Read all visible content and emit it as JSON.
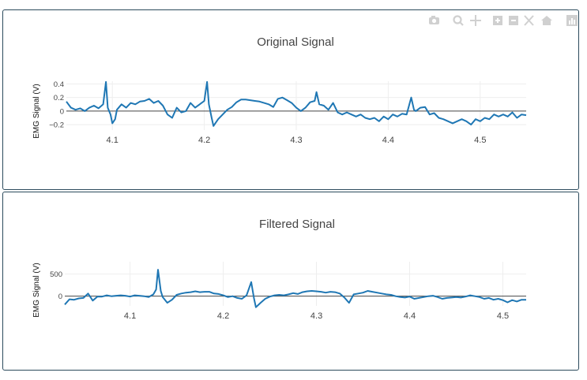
{
  "toolbar": {
    "icons": [
      "camera-icon",
      "zoom-icon",
      "pan-icon",
      "zoom-in-icon",
      "zoom-out-icon",
      "autoscale-icon",
      "home-icon",
      "plotly-logo-icon"
    ]
  },
  "colors": {
    "line": "#1f77b4",
    "zeroline": "#444444",
    "grid": "#eeeeee",
    "border": "#2b4a5c"
  },
  "chart_data": [
    {
      "type": "line",
      "title": "Original Signal",
      "ylabel": "EMG Signal (V)",
      "xlabel": "",
      "xlim": [
        4.05,
        4.55
      ],
      "ylim": [
        -0.28,
        0.44
      ],
      "xticks": [
        "4.1",
        "4.2",
        "4.3",
        "4.4",
        "4.5"
      ],
      "xtick_values": [
        4.1,
        4.2,
        4.3,
        4.4,
        4.5
      ],
      "yticks": [
        "0.4",
        "0.2",
        "0",
        "−0.2"
      ],
      "ytick_values": [
        0.4,
        0.2,
        0,
        -0.2
      ],
      "grid": true,
      "x": [
        4.05,
        4.055,
        4.06,
        4.065,
        4.07,
        4.075,
        4.08,
        4.085,
        4.09,
        4.093,
        4.095,
        4.098,
        4.1,
        4.103,
        4.105,
        4.11,
        4.115,
        4.12,
        4.125,
        4.13,
        4.135,
        4.14,
        4.145,
        4.15,
        4.155,
        4.16,
        4.165,
        4.17,
        4.175,
        4.18,
        4.185,
        4.19,
        4.195,
        4.2,
        4.203,
        4.205,
        4.208,
        4.21,
        4.215,
        4.22,
        4.225,
        4.23,
        4.235,
        4.24,
        4.245,
        4.25,
        4.255,
        4.26,
        4.265,
        4.27,
        4.275,
        4.28,
        4.285,
        4.29,
        4.295,
        4.3,
        4.305,
        4.31,
        4.315,
        4.32,
        4.322,
        4.325,
        4.33,
        4.335,
        4.34,
        4.345,
        4.35,
        4.355,
        4.36,
        4.365,
        4.37,
        4.375,
        4.38,
        4.385,
        4.39,
        4.395,
        4.4,
        4.405,
        4.41,
        4.415,
        4.42,
        4.425,
        4.428,
        4.43,
        4.435,
        4.44,
        4.445,
        4.45,
        4.455,
        4.46,
        4.465,
        4.47,
        4.475,
        4.48,
        4.485,
        4.49,
        4.495,
        4.5,
        4.505,
        4.51,
        4.515,
        4.52,
        4.525,
        4.53,
        4.535,
        4.54,
        4.545,
        4.55
      ],
      "y": [
        0.14,
        0.05,
        0.02,
        0.04,
        0.0,
        0.05,
        0.08,
        0.04,
        0.1,
        0.43,
        0.05,
        -0.05,
        -0.18,
        -0.12,
        0.02,
        0.1,
        0.05,
        0.12,
        0.1,
        0.14,
        0.15,
        0.18,
        0.12,
        0.15,
        0.08,
        -0.05,
        -0.1,
        0.05,
        -0.02,
        0.0,
        0.12,
        0.05,
        0.1,
        0.15,
        0.43,
        0.1,
        -0.1,
        -0.22,
        -0.12,
        -0.05,
        0.02,
        0.06,
        0.13,
        0.17,
        0.17,
        0.16,
        0.15,
        0.14,
        0.12,
        0.1,
        0.06,
        0.18,
        0.2,
        0.16,
        0.12,
        0.05,
        0.0,
        0.05,
        0.13,
        0.15,
        0.28,
        0.1,
        0.08,
        0.02,
        0.12,
        -0.02,
        -0.05,
        -0.02,
        -0.05,
        -0.08,
        -0.05,
        -0.1,
        -0.12,
        -0.1,
        -0.15,
        -0.08,
        -0.12,
        -0.05,
        -0.08,
        -0.04,
        -0.05,
        0.2,
        0.02,
        0.0,
        0.05,
        0.06,
        -0.05,
        -0.03,
        -0.1,
        -0.12,
        -0.15,
        -0.18,
        -0.15,
        -0.12,
        -0.15,
        -0.2,
        -0.12,
        -0.15,
        -0.1,
        -0.12,
        -0.05,
        -0.08,
        -0.05,
        -0.08,
        -0.02,
        -0.1,
        -0.05,
        -0.06
      ]
    },
    {
      "type": "line",
      "title": "Filtered Signal",
      "ylabel": "EMG Signal (V)",
      "xlabel": "",
      "xlim": [
        4.03,
        4.525
      ],
      "ylim": [
        -220,
        780
      ],
      "xticks": [
        "4.1",
        "4.2",
        "4.3",
        "4.4",
        "4.5"
      ],
      "xtick_values": [
        4.1,
        4.2,
        4.3,
        4.4,
        4.5
      ],
      "yticks": [
        "500",
        "0"
      ],
      "ytick_values": [
        500,
        0
      ],
      "grid": true,
      "x": [
        4.03,
        4.035,
        4.04,
        4.045,
        4.05,
        4.055,
        4.06,
        4.065,
        4.07,
        4.075,
        4.08,
        4.085,
        4.09,
        4.095,
        4.1,
        4.105,
        4.11,
        4.115,
        4.12,
        4.125,
        4.128,
        4.13,
        4.133,
        4.135,
        4.14,
        4.145,
        4.15,
        4.155,
        4.16,
        4.165,
        4.17,
        4.175,
        4.18,
        4.185,
        4.19,
        4.195,
        4.2,
        4.205,
        4.21,
        4.215,
        4.22,
        4.225,
        4.23,
        4.233,
        4.235,
        4.24,
        4.245,
        4.25,
        4.255,
        4.26,
        4.265,
        4.27,
        4.275,
        4.28,
        4.285,
        4.29,
        4.295,
        4.3,
        4.305,
        4.31,
        4.315,
        4.32,
        4.325,
        4.33,
        4.335,
        4.34,
        4.345,
        4.35,
        4.355,
        4.36,
        4.365,
        4.37,
        4.375,
        4.38,
        4.385,
        4.39,
        4.395,
        4.4,
        4.405,
        4.41,
        4.415,
        4.42,
        4.425,
        4.43,
        4.435,
        4.44,
        4.445,
        4.45,
        4.455,
        4.46,
        4.465,
        4.47,
        4.475,
        4.48,
        4.485,
        4.49,
        4.495,
        4.5,
        4.505,
        4.51,
        4.515,
        4.52,
        4.525
      ],
      "y": [
        -190,
        -70,
        -80,
        -50,
        -40,
        60,
        -100,
        -10,
        -10,
        20,
        0,
        10,
        20,
        10,
        -10,
        20,
        10,
        0,
        -20,
        40,
        150,
        600,
        120,
        -20,
        -150,
        -80,
        30,
        60,
        80,
        90,
        110,
        90,
        100,
        100,
        60,
        50,
        20,
        -20,
        0,
        -40,
        -60,
        20,
        320,
        -50,
        -250,
        -150,
        -60,
        -10,
        20,
        30,
        20,
        40,
        70,
        50,
        90,
        110,
        120,
        110,
        100,
        80,
        100,
        90,
        60,
        -30,
        -150,
        40,
        60,
        80,
        120,
        100,
        80,
        60,
        40,
        30,
        0,
        -20,
        -30,
        -10,
        -60,
        -40,
        -20,
        0,
        10,
        -20,
        -60,
        -40,
        -30,
        -20,
        -30,
        -10,
        20,
        0,
        -20,
        -60,
        -40,
        -80,
        -60,
        -90,
        -140,
        -90,
        -120,
        -80,
        -80
      ]
    }
  ]
}
